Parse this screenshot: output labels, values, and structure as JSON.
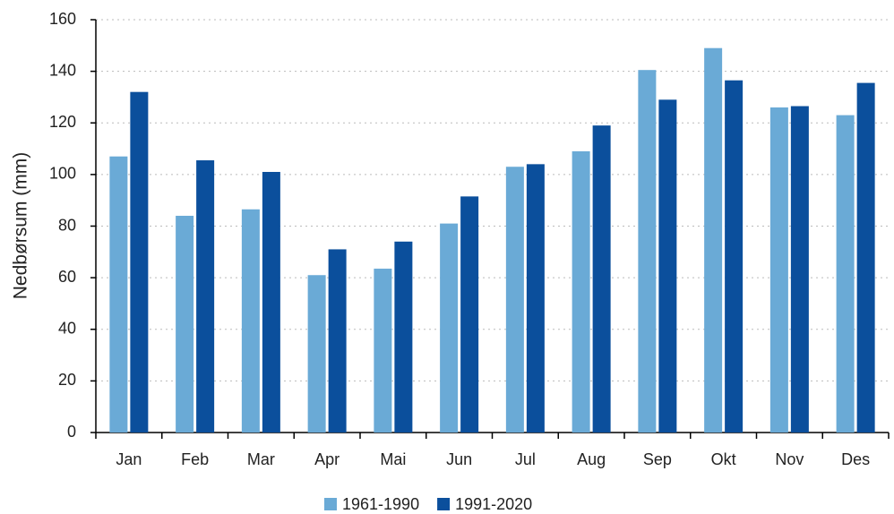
{
  "chart_data": {
    "type": "bar",
    "y_label": "Nedbørsum (mm)",
    "categories": [
      "Jan",
      "Feb",
      "Mar",
      "Apr",
      "Mai",
      "Jun",
      "Jul",
      "Aug",
      "Sep",
      "Okt",
      "Nov",
      "Des"
    ],
    "series": [
      {
        "name": "1961-1990",
        "color": "#6aaad6",
        "values": [
          107,
          84,
          86.5,
          61,
          63.5,
          81,
          103,
          109,
          140.5,
          149,
          126,
          123
        ]
      },
      {
        "name": "1991-2020",
        "color": "#0b4f9c",
        "values": [
          132,
          105.5,
          101,
          71,
          74,
          91.5,
          104,
          119,
          129,
          136.5,
          126.5,
          135.5
        ]
      }
    ],
    "ylim": [
      0,
      160
    ],
    "yticks": [
      0,
      20,
      40,
      60,
      80,
      100,
      120,
      140,
      160
    ],
    "grid": true,
    "legend": "bottom"
  }
}
